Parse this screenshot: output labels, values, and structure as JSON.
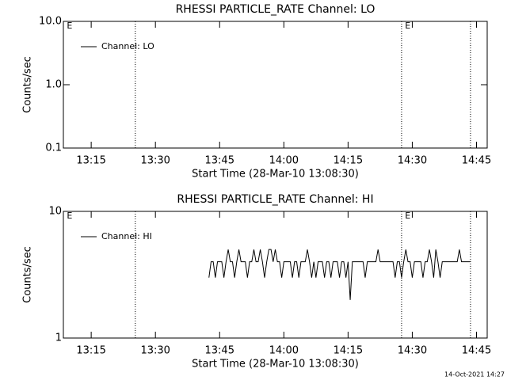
{
  "chart_data": [
    {
      "type": "line",
      "title": "RHESSI PARTICLE_RATE Channel: LO",
      "xlabel": "Start Time (28-Mar-10 13:08:30)",
      "ylabel": "Counts/sec",
      "xlim": [
        788.5,
        887.5
      ],
      "xticks": [
        {
          "value": 795,
          "label": "13:15"
        },
        {
          "value": 810,
          "label": "13:30"
        },
        {
          "value": 825,
          "label": "13:45"
        },
        {
          "value": 840,
          "label": "14:00"
        },
        {
          "value": 855,
          "label": "14:15"
        },
        {
          "value": 870,
          "label": "14:30"
        },
        {
          "value": 885,
          "label": "14:45"
        }
      ],
      "ylim": [
        0.1,
        10
      ],
      "yscale": "log",
      "yticks": [
        0.1,
        {
          "value": 1,
          "label": "1.0"
        },
        {
          "value": 10,
          "label": "10.0"
        }
      ],
      "vlines": [
        805.3,
        867.5,
        883.6
      ],
      "annotations": [
        {
          "text": "E",
          "x": 789.3
        },
        {
          "text": "E",
          "x": 868.3
        }
      ],
      "x": [],
      "series": [
        {
          "name": "Channel: LO",
          "color": "#000000",
          "values": []
        }
      ]
    },
    {
      "type": "line",
      "title": "RHESSI PARTICLE_RATE Channel: HI",
      "xlabel": "Start Time (28-Mar-10 13:08:30)",
      "ylabel": "Counts/sec",
      "xlim": [
        788.5,
        887.5
      ],
      "xticks": [
        {
          "value": 795,
          "label": "13:15"
        },
        {
          "value": 810,
          "label": "13:30"
        },
        {
          "value": 825,
          "label": "13:45"
        },
        {
          "value": 840,
          "label": "14:00"
        },
        {
          "value": 855,
          "label": "14:15"
        },
        {
          "value": 870,
          "label": "14:30"
        },
        {
          "value": 885,
          "label": "14:45"
        }
      ],
      "ylim": [
        1,
        10
      ],
      "yscale": "log",
      "yticks": [
        1,
        10
      ],
      "vlines": [
        805.3,
        867.5,
        883.6
      ],
      "annotations": [
        {
          "text": "E",
          "x": 789.3
        },
        {
          "text": "E",
          "x": 868.3
        }
      ],
      "x": [
        822.5,
        823,
        823.5,
        824,
        824.5,
        825,
        825.5,
        826,
        826.5,
        827,
        827.5,
        828,
        828.5,
        829,
        829.5,
        830,
        830.5,
        831,
        831.5,
        832,
        832.5,
        833,
        833.5,
        834,
        834.5,
        835,
        835.5,
        836,
        836.5,
        837,
        837.5,
        838,
        838.5,
        839,
        839.5,
        840,
        840.5,
        841,
        841.5,
        842,
        842.5,
        843,
        843.5,
        844,
        844.5,
        845,
        845.5,
        846,
        846.5,
        847,
        847.5,
        848,
        848.5,
        849,
        849.5,
        850,
        850.5,
        851,
        851.5,
        852,
        852.5,
        853,
        853.5,
        854,
        854.5,
        855,
        855.5,
        856,
        856.5,
        857,
        857.5,
        858,
        858.5,
        859,
        859.5,
        860,
        860.5,
        861,
        861.5,
        862,
        862.5,
        863,
        863.5,
        864,
        864.5,
        865,
        865.5,
        866,
        866.5,
        867,
        867.5,
        868,
        868.5,
        869,
        869.5,
        870,
        870.5,
        871,
        871.5,
        872,
        872.5,
        873,
        873.5,
        874,
        874.5,
        875,
        875.5,
        876,
        876.5,
        877,
        877.5,
        878,
        878.5,
        879,
        879.5,
        880,
        880.5,
        881,
        881.5,
        882,
        882.5,
        883,
        883.5
      ],
      "series": [
        {
          "name": "Channel: HI",
          "color": "#000000",
          "values": [
            3,
            4,
            4,
            3,
            4,
            4,
            4,
            3,
            4,
            5,
            4,
            4,
            3,
            4,
            5,
            4,
            4,
            4,
            3,
            4,
            4,
            5,
            4,
            4,
            5,
            4,
            3,
            4,
            5,
            5,
            4,
            5,
            4,
            4,
            3,
            4,
            4,
            4,
            4,
            3,
            4,
            4,
            3,
            4,
            4,
            4,
            5,
            4,
            3,
            4,
            3,
            4,
            4,
            4,
            3,
            4,
            4,
            3,
            4,
            4,
            4,
            3,
            4,
            4,
            3,
            4,
            2,
            4,
            4,
            4,
            4,
            4,
            4,
            3,
            4,
            4,
            4,
            4,
            4,
            5,
            4,
            4,
            4,
            4,
            4,
            4,
            4,
            3,
            4,
            4,
            3,
            4,
            5,
            4,
            4,
            3,
            4,
            4,
            4,
            4,
            3,
            4,
            4,
            5,
            4,
            3,
            5,
            4,
            3,
            4,
            4,
            4,
            4,
            4,
            4,
            4,
            4,
            5,
            4,
            4,
            4,
            4,
            4
          ]
        }
      ]
    }
  ],
  "footer": "14-Oct-2021 14:27"
}
